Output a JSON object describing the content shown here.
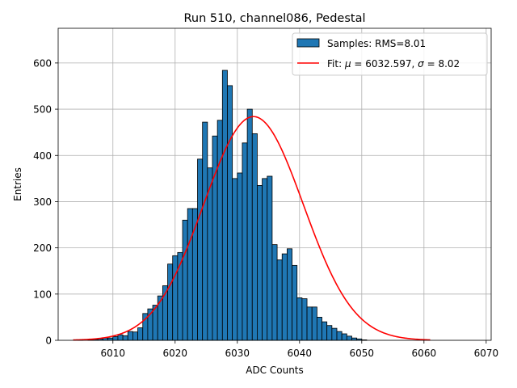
{
  "chart_data": {
    "type": "bar",
    "title": "Run 510, channel086, Pedestal",
    "xlabel": "ADC Counts",
    "ylabel": "Entries",
    "xlim": [
      6001.2,
      6070.8
    ],
    "ylim": [
      0,
      675
    ],
    "xticks": [
      6010,
      6020,
      6030,
      6040,
      6050,
      6060,
      6070
    ],
    "yticks": [
      0,
      100,
      200,
      300,
      400,
      500,
      600
    ],
    "grid": true,
    "legend_position": "top-right",
    "histogram": {
      "name": "Samples: RMS=8.01",
      "bin_width": 0.8,
      "bin_start": 6003.6,
      "counts": [
        0,
        1,
        0,
        1,
        2,
        3,
        5,
        5,
        8,
        12,
        10,
        19,
        18,
        27,
        58,
        68,
        76,
        96,
        118,
        165,
        183,
        190,
        260,
        285,
        285,
        392,
        472,
        373,
        442,
        476,
        584,
        551,
        350,
        362,
        427,
        500,
        447,
        335,
        350,
        355,
        207,
        174,
        187,
        198,
        162,
        92,
        90,
        72,
        72,
        50,
        40,
        32,
        26,
        19,
        14,
        9,
        5,
        3,
        1,
        0,
        0,
        0,
        0,
        0,
        0,
        0,
        0,
        0,
        0,
        0,
        0,
        0,
        0,
        0,
        0,
        0,
        0,
        0,
        0,
        0,
        0,
        0
      ],
      "color": "#1f77b4",
      "edge_color": "#000000"
    },
    "fit": {
      "name": "Fit: $\\mu$ = 6032.597, $\\sigma$ = 8.02",
      "label_prefix": "Fit: ",
      "mu": 6032.597,
      "sigma": 8.02,
      "amplitude": 484,
      "x_range": [
        6003.6,
        6061.0
      ],
      "color": "#ff0000"
    }
  }
}
